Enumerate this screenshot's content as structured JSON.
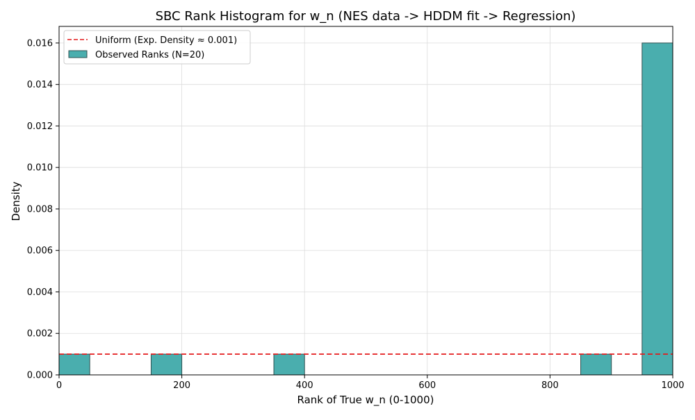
{
  "chart_data": {
    "type": "bar",
    "title": "SBC Rank Histogram for w_n (NES data -> HDDM fit -> Regression)",
    "xlabel": "Rank of True w_n (0-1000)",
    "ylabel": "Density",
    "xlim": [
      0,
      1000
    ],
    "ylim": [
      0,
      0.0168
    ],
    "grid": true,
    "legend_position": "top-left",
    "x_ticks": [
      0,
      200,
      400,
      600,
      800,
      1000
    ],
    "y_ticks": [
      0.0,
      0.002,
      0.004,
      0.006,
      0.008,
      0.01,
      0.012,
      0.014,
      0.016
    ],
    "x_tick_labels": [
      "0",
      "200",
      "400",
      "600",
      "800",
      "1000"
    ],
    "y_tick_labels": [
      "0.000",
      "0.002",
      "0.004",
      "0.006",
      "0.008",
      "0.010",
      "0.012",
      "0.014",
      "0.016"
    ],
    "bin_width": 50,
    "bins": [
      {
        "x0": 0,
        "x1": 50,
        "density": 0.001
      },
      {
        "x0": 150,
        "x1": 200,
        "density": 0.001
      },
      {
        "x0": 350,
        "x1": 400,
        "density": 0.001
      },
      {
        "x0": 850,
        "x1": 900,
        "density": 0.001
      },
      {
        "x0": 950,
        "x1": 1000,
        "density": 0.016
      }
    ],
    "reference_line": {
      "name": "Uniform (Exp. Density ≈ 0.001)",
      "y": 0.001,
      "color": "#e41a1c",
      "style": "dashed"
    },
    "series": [
      {
        "name": "Observed Ranks (N=20)",
        "color": "#4aaeae",
        "edge_color": "#2f4f4f"
      }
    ]
  }
}
